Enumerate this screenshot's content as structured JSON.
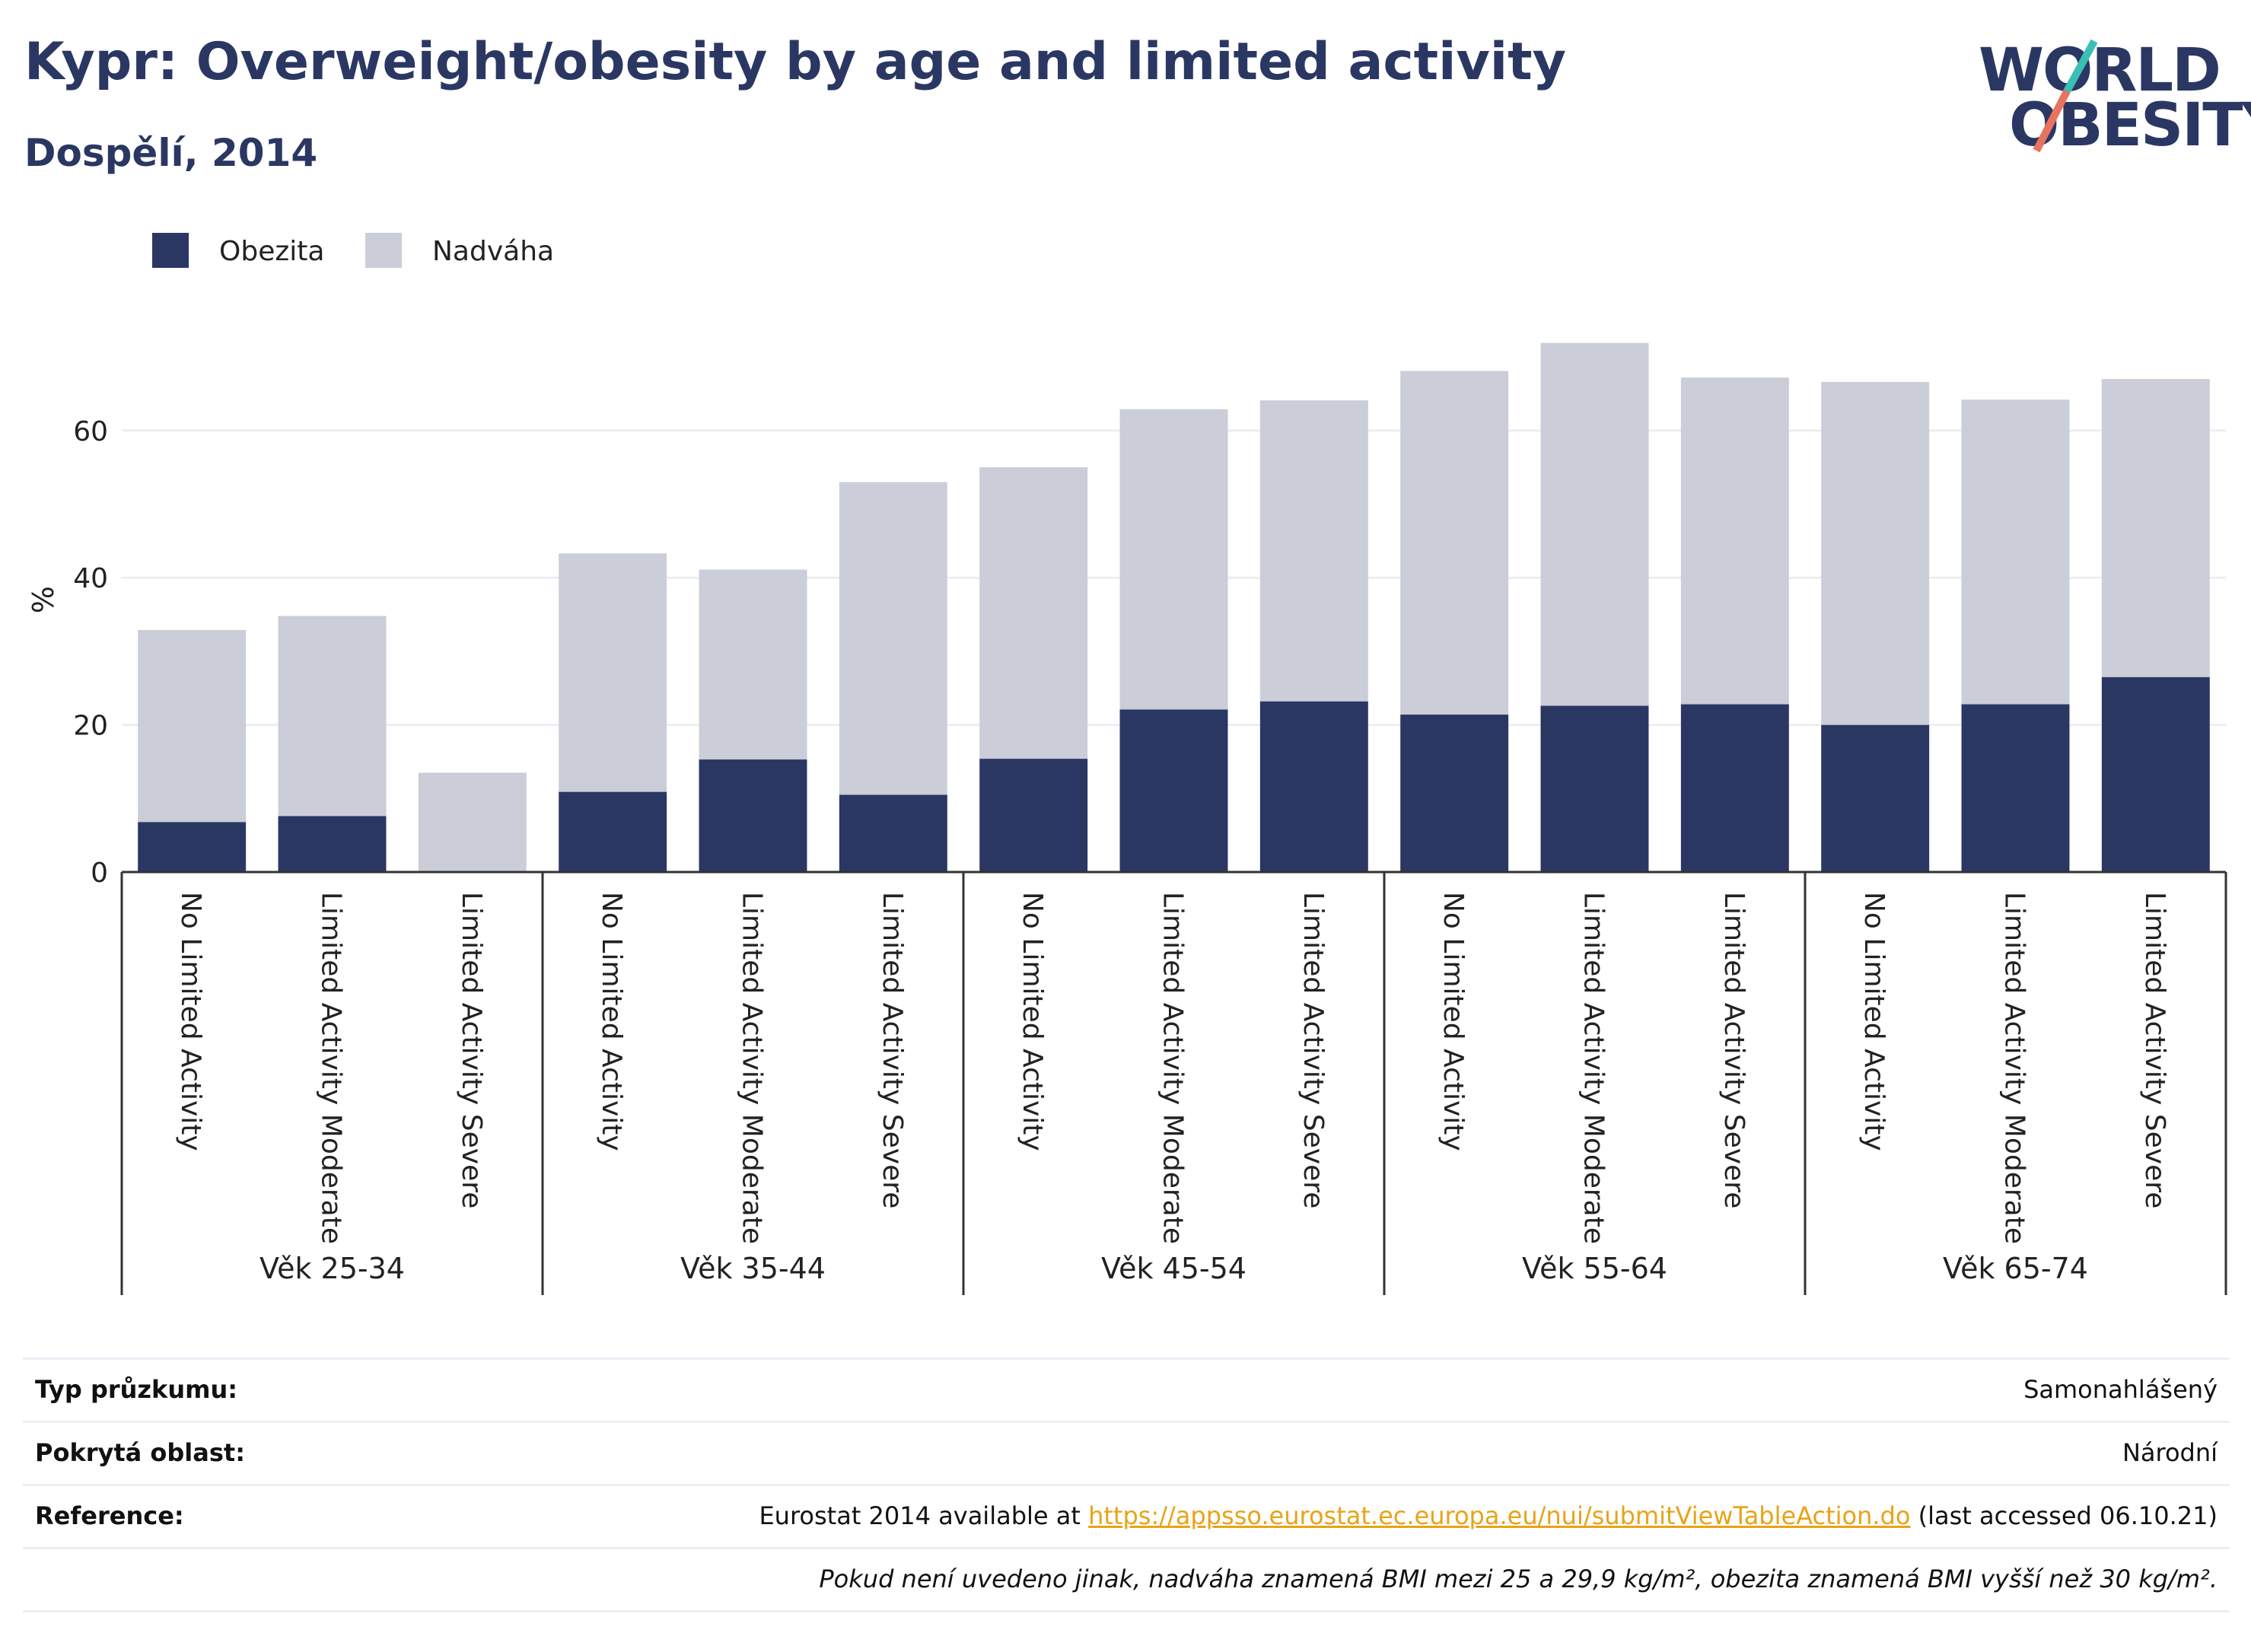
{
  "title": "Kypr: Overweight/obesity by age and limited activity",
  "subtitle": "Dospělí, 2014",
  "logo": {
    "line1": "WORLD",
    "line2": "OBESITY"
  },
  "colors": {
    "obesity": "#2b3763",
    "overweight": "#cbcdd8",
    "title": "#2b3763",
    "link": "#e8a317",
    "gridline": "#eceef4"
  },
  "chart_data": {
    "type": "bar",
    "stacked": true,
    "title": "Kypr: Overweight/obesity by age and limited activity",
    "subtitle": "Dospělí, 2014",
    "ylabel": "%",
    "ylim": [
      0,
      75
    ],
    "yticks": [
      0,
      20,
      40,
      60
    ],
    "grid": true,
    "legend_position": "top-left",
    "groups": [
      {
        "label": "Věk 25-34",
        "categories": [
          "No Limited Activity",
          "Limited Activity Moderate",
          "Limited Activity Severe"
        ]
      },
      {
        "label": "Věk 35-44",
        "categories": [
          "No Limited Activity",
          "Limited Activity Moderate",
          "Limited Activity Severe"
        ]
      },
      {
        "label": "Věk 45-54",
        "categories": [
          "No Limited Activity",
          "Limited Activity Moderate",
          "Limited Activity Severe"
        ]
      },
      {
        "label": "Věk 55-64",
        "categories": [
          "No Limited Activity",
          "Limited Activity Moderate",
          "Limited Activity Severe"
        ]
      },
      {
        "label": "Věk 65-74",
        "categories": [
          "No Limited Activity",
          "Limited Activity Moderate",
          "Limited Activity Severe"
        ]
      }
    ],
    "series": [
      {
        "name": "Obezita",
        "color": "#2b3763",
        "values": [
          6.8,
          7.6,
          0,
          10.9,
          15.3,
          10.5,
          15.4,
          22.1,
          23.2,
          21.4,
          22.6,
          22.8,
          20.0,
          22.8,
          26.5
        ]
      },
      {
        "name": "Nadváha",
        "color": "#cbcdd8",
        "values": [
          26.1,
          27.2,
          13.5,
          32.4,
          25.8,
          42.5,
          39.6,
          40.8,
          40.9,
          46.7,
          49.3,
          44.4,
          46.6,
          41.4,
          40.5
        ]
      }
    ]
  },
  "footer": {
    "rows": [
      {
        "label": "Typ průzkumu:",
        "value": "Samonahlášený"
      },
      {
        "label": "Pokrytá oblast:",
        "value": "Národní"
      },
      {
        "label": "Reference:",
        "value_prefix": "Eurostat 2014 available at ",
        "link": "https://appsso.eurostat.ec.europa.eu/nui/submitViewTableAction.do",
        "value_suffix": " (last accessed 06.10.21)"
      }
    ],
    "note": "Pokud není uvedeno jinak, nadváha znamená BMI mezi 25 a 29,9 kg/m², obezita znamená BMI vyšší než 30 kg/m²."
  }
}
